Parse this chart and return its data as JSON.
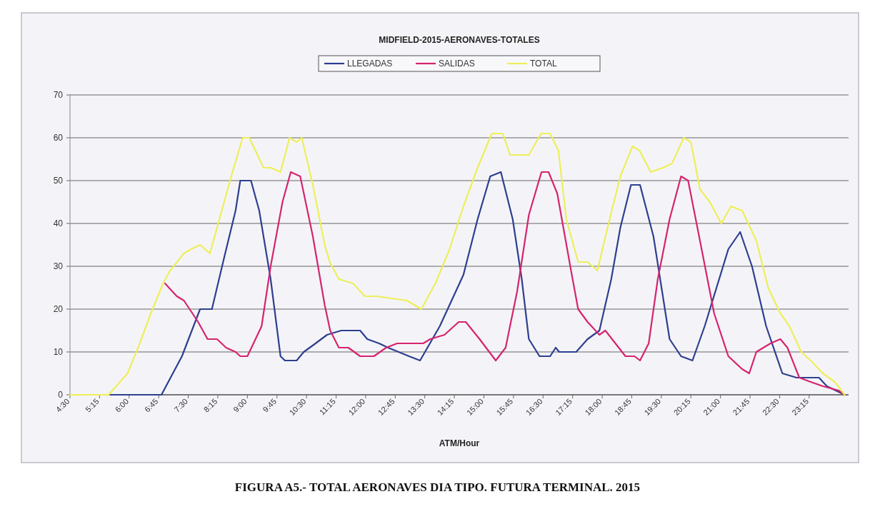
{
  "chart_data": {
    "type": "line",
    "title": "MIDFIELD-2015-AERONAVES-TOTALES",
    "xlabel": "ATM/Hour",
    "annotations": [
      "FIGURA A5.- TOTAL AERONAVES DIA TIPO. FUTURA TERMINAL. 2015"
    ],
    "xlim": [
      4.5,
      24.25
    ],
    "ylim": [
      0,
      70
    ],
    "yticks": [
      0,
      10,
      20,
      30,
      40,
      50,
      60,
      70
    ],
    "xticks": [
      {
        "value": 4.5,
        "label": "4:30"
      },
      {
        "value": 5.25,
        "label": "5:15"
      },
      {
        "value": 6,
        "label": "6:00"
      },
      {
        "value": 6.75,
        "label": "6:45"
      },
      {
        "value": 7.5,
        "label": "7:30"
      },
      {
        "value": 8.25,
        "label": "8:15"
      },
      {
        "value": 9,
        "label": "9:00"
      },
      {
        "value": 9.75,
        "label": "9:45"
      },
      {
        "value": 10.5,
        "label": "10:30"
      },
      {
        "value": 11.25,
        "label": "11:15"
      },
      {
        "value": 12,
        "label": "12:00"
      },
      {
        "value": 12.75,
        "label": "12:45"
      },
      {
        "value": 13.5,
        "label": "13:30"
      },
      {
        "value": 14.25,
        "label": "14:15"
      },
      {
        "value": 15,
        "label": "15:00"
      },
      {
        "value": 15.75,
        "label": "15:45"
      },
      {
        "value": 16.5,
        "label": "16:30"
      },
      {
        "value": 17.25,
        "label": "17:15"
      },
      {
        "value": 18,
        "label": "18:00"
      },
      {
        "value": 18.75,
        "label": "18:45"
      },
      {
        "value": 19.5,
        "label": "19:30"
      },
      {
        "value": 20.25,
        "label": "20:15"
      },
      {
        "value": 21,
        "label": "21:00"
      },
      {
        "value": 21.75,
        "label": "21:45"
      },
      {
        "value": 22.5,
        "label": "22:30"
      },
      {
        "value": 23.25,
        "label": "23:15"
      }
    ],
    "grid": "y",
    "legend": "top",
    "marker": "none",
    "line_style": "solid",
    "series": [
      {
        "name": "LLEGADAS",
        "color": "#2e3f8f",
        "x": [
          4.5,
          6.82,
          7.34,
          7.8,
          8.1,
          8.41,
          8.7,
          8.82,
          9.09,
          9.3,
          9.59,
          9.84,
          9.95,
          10.25,
          10.43,
          10.73,
          11.02,
          11.38,
          11.86,
          12.04,
          12.34,
          12.57,
          13.1,
          13.38,
          13.88,
          14.18,
          14.48,
          14.84,
          15.16,
          15.43,
          15.73,
          15.96,
          16.14,
          16.41,
          16.68,
          16.82,
          16.91,
          17.34,
          17.63,
          17.93,
          18.23,
          18.46,
          18.73,
          18.96,
          19.3,
          19.71,
          20.0,
          20.29,
          20.6,
          21.2,
          21.5,
          21.8,
          22.16,
          22.57,
          22.93,
          23.2,
          23.5,
          23.7,
          24.15
        ],
        "values": [
          0,
          0,
          9,
          20,
          20,
          32,
          43,
          50,
          50,
          43,
          27,
          9,
          8,
          8,
          10,
          12,
          14,
          15,
          15,
          13,
          12,
          11,
          9,
          8,
          16,
          22,
          28,
          41,
          51,
          52,
          41,
          27,
          13,
          9,
          9,
          11,
          10,
          10,
          13,
          15,
          27,
          39,
          49,
          49,
          37,
          13,
          9,
          8,
          16,
          34,
          38,
          30,
          16,
          5,
          4,
          4,
          4,
          2,
          0
        ]
      },
      {
        "name": "SALIDAS",
        "color": "#d6246e",
        "x": [
          6.91,
          7.21,
          7.39,
          7.75,
          7.99,
          8.23,
          8.46,
          8.7,
          8.82,
          9.0,
          9.36,
          9.59,
          9.89,
          10.1,
          10.34,
          10.66,
          10.96,
          11.1,
          11.32,
          11.56,
          11.86,
          12.21,
          12.52,
          12.8,
          13.46,
          13.64,
          14.0,
          14.36,
          14.54,
          14.89,
          15.3,
          15.55,
          15.84,
          16.14,
          16.46,
          16.64,
          16.86,
          17.21,
          17.39,
          17.63,
          17.93,
          18.08,
          18.59,
          18.82,
          18.96,
          19.18,
          19.41,
          19.71,
          20.0,
          20.18,
          20.48,
          20.84,
          21.2,
          21.55,
          21.73,
          21.91,
          22.09,
          22.27,
          22.52,
          22.7,
          23.0,
          23.29,
          23.6,
          24.0,
          24.15
        ],
        "values": [
          26,
          23,
          22,
          17,
          13,
          13,
          11,
          10,
          9,
          9,
          16,
          30,
          45,
          52,
          51,
          37,
          21,
          15,
          11,
          11,
          9,
          9,
          11,
          12,
          12,
          13,
          14,
          17,
          17,
          13,
          8,
          11,
          24,
          42,
          52,
          52,
          47,
          29,
          20,
          17,
          14,
          15,
          9,
          9,
          8,
          12,
          27,
          41,
          51,
          50,
          36,
          19,
          9,
          6,
          5,
          10,
          11,
          12,
          13,
          11,
          4,
          3,
          2,
          1,
          0
        ]
      },
      {
        "name": "TOTAL",
        "color": "#eeee5a",
        "x": [
          4.5,
          5.48,
          5.96,
          6.27,
          6.55,
          6.86,
          7.04,
          7.39,
          7.57,
          7.8,
          8.05,
          8.29,
          8.59,
          8.88,
          9.05,
          9.41,
          9.59,
          9.84,
          10.07,
          10.25,
          10.38,
          10.66,
          10.96,
          11.09,
          11.32,
          11.68,
          11.98,
          12.27,
          13.05,
          13.41,
          13.77,
          14.13,
          14.48,
          14.84,
          15.2,
          15.48,
          15.66,
          16.14,
          16.45,
          16.68,
          16.89,
          17.09,
          17.39,
          17.63,
          17.88,
          18.11,
          18.46,
          18.77,
          18.95,
          19.23,
          19.54,
          19.77,
          20.07,
          20.25,
          20.48,
          20.73,
          21.02,
          21.27,
          21.55,
          21.91,
          22.21,
          22.52,
          22.75,
          23.05,
          23.29,
          23.6,
          23.9,
          24.15
        ],
        "values": [
          0,
          0,
          5,
          12,
          19,
          26,
          29,
          33,
          34,
          35,
          33,
          41,
          51,
          60,
          60,
          53,
          53,
          52,
          60,
          59,
          60,
          49,
          35,
          31,
          27,
          26,
          23,
          23,
          22,
          20,
          26,
          34,
          44,
          53,
          61,
          61,
          56,
          56,
          61,
          61,
          57,
          41,
          31,
          31,
          29,
          38,
          51,
          58,
          57,
          52,
          53,
          54,
          60,
          59,
          48,
          45,
          40,
          44,
          43,
          36,
          25,
          19,
          16,
          10,
          8,
          5,
          3,
          0
        ]
      }
    ]
  }
}
